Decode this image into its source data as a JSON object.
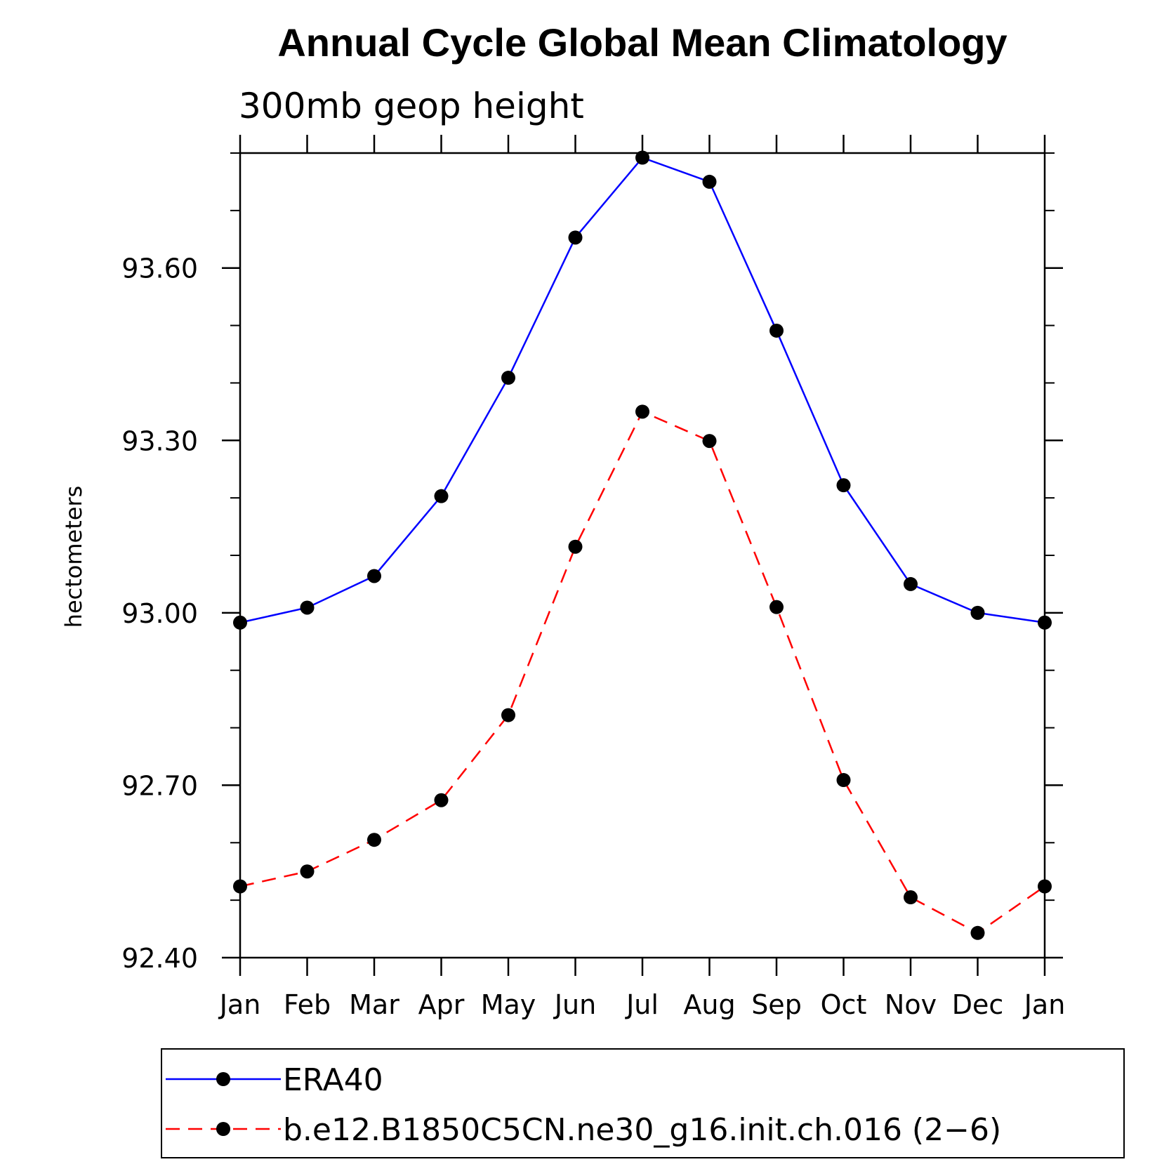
{
  "chart_data": {
    "type": "line",
    "title": "Annual Cycle Global Mean Climatology",
    "subtitle": "300mb geop height",
    "ylabel": "hectometers",
    "xlabel": "",
    "categories": [
      "Jan",
      "Feb",
      "Mar",
      "Apr",
      "May",
      "Jun",
      "Jul",
      "Aug",
      "Sep",
      "Oct",
      "Nov",
      "Dec",
      "Jan"
    ],
    "ylim": [
      92.4,
      93.8
    ],
    "yticks": [
      92.4,
      92.7,
      93.0,
      93.3,
      93.6
    ],
    "ytick_labels": [
      "92.40",
      "92.70",
      "93.00",
      "93.30",
      "93.60"
    ],
    "y_minor_step": 0.1,
    "series": [
      {
        "name": "ERA40",
        "color": "#0000ff",
        "dash": "solid",
        "values": [
          92.983,
          93.009,
          93.064,
          93.203,
          93.409,
          93.653,
          93.792,
          93.75,
          93.491,
          93.222,
          93.05,
          93.0,
          92.983
        ]
      },
      {
        "name": "b.e12.B1850C5CN.ne30_g16.init.ch.016 (2−6)",
        "color": "#ff0000",
        "dash": "dashed",
        "values": [
          92.524,
          92.55,
          92.605,
          92.674,
          92.822,
          93.115,
          93.35,
          93.299,
          93.01,
          92.709,
          92.505,
          92.443,
          92.524
        ]
      }
    ],
    "legend_position": "bottom"
  }
}
